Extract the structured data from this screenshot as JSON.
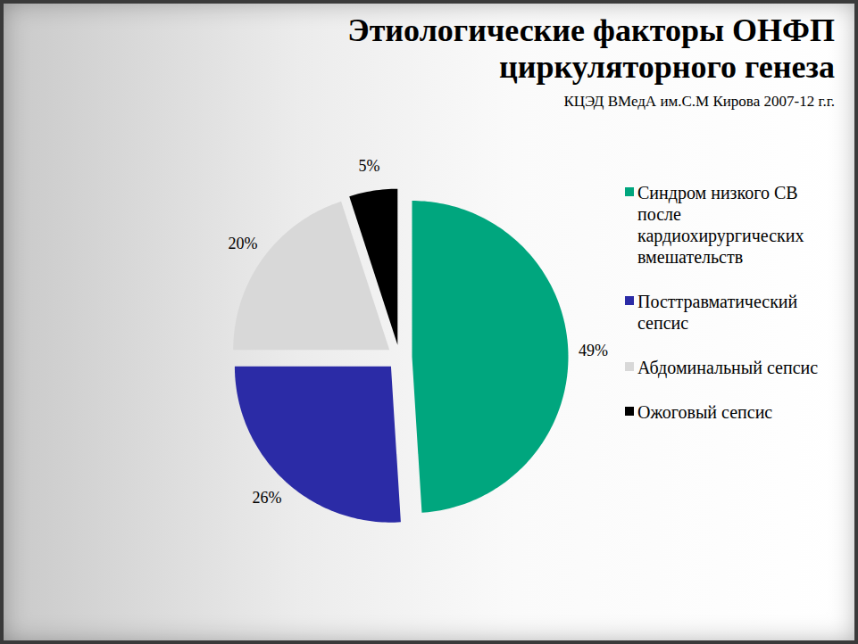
{
  "chart_data": {
    "type": "pie",
    "title": "Этиологические факторы ОНФП циркуляторного генеза",
    "subtitle": "КЦЭД ВМедА им.С.М Кирова 2007-12 г.г.",
    "categories": [
      "Синдром низкого СВ после кардиохирургических вмешательств",
      "Посттравматический сепсис",
      "Абдоминальный сепсис",
      "Ожоговый сепсис"
    ],
    "values": [
      49,
      26,
      20,
      5
    ],
    "value_labels": [
      "49%",
      "26%",
      "20%",
      "5%"
    ],
    "colors": [
      "#00a67e",
      "#2b2ba6",
      "#d8d8d8",
      "#000000"
    ],
    "data_labels": true,
    "legend": "right"
  }
}
